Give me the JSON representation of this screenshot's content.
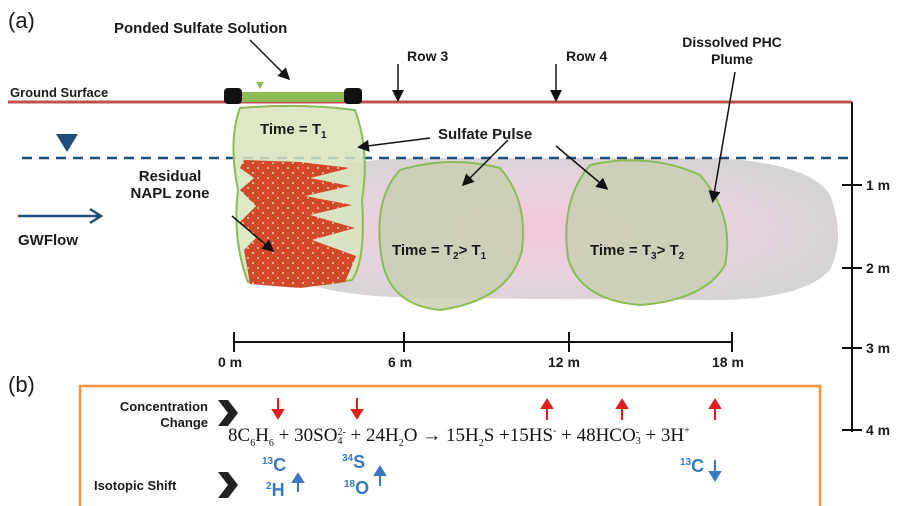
{
  "panel_a_label": "(a)",
  "panel_b_label": "(b)",
  "ponded_sulfate": "Ponded Sulfate Solution",
  "row3": "Row 3",
  "row4": "Row 4",
  "dissolved_plume_1": "Dissolved PHC",
  "dissolved_plume_2": "Plume",
  "ground_surface": "Ground Surface",
  "time1": "Time = T",
  "time1_sub": "1",
  "sulfate_pulse": "Sulfate Pulse",
  "residual_1": "Residual",
  "residual_2": "NAPL zone",
  "gwflow": "GWFlow",
  "time2_a": "Time = T",
  "time2_sub": "2",
  "time2_b": "> T",
  "time2_sub2": "1",
  "time3_a": "Time = T",
  "time3_sub": "3",
  "time3_b": "> T",
  "time3_sub2": "2",
  "hscale_ticks": [
    "0 m",
    "6 m",
    "12 m",
    "18 m"
  ],
  "vscale_ticks": [
    "1 m",
    "2 m",
    "3 m",
    "4 m"
  ],
  "conc_change_1": "Concentration",
  "conc_change_2": "Change",
  "isotopic_shift": "Isotopic Shift",
  "eq": {
    "c6h6_coef": "8C",
    "c6h6_sub1": "6",
    "c6h6_h": "H",
    "c6h6_sub2": "6",
    "plus1": " + 30SO",
    "so4_sub": "4",
    "so4_sup": "2-",
    "plus2": " + 24H",
    "h2o_sub": "2",
    "h2o_o": "O",
    "arrow": " → ",
    "h2s": "15H",
    "h2s_sub": "2",
    "h2s_s": "S",
    "plus3": " +15HS",
    "hs_sup": "-",
    "plus4": " + 48HCO",
    "hco3_sub": "3",
    "hco3_sup": "-",
    "plus5": " + 3H",
    "h_sup": "+"
  },
  "iso": {
    "c13_sup": "13",
    "c13_el": "C",
    "h2_sup": "2",
    "h2_el": "H",
    "s34_sup": "34",
    "s34_el": "S",
    "o18_sup": "18",
    "o18_el": "O",
    "c13b_sup": "13",
    "c13b_el": "C"
  },
  "colors": {
    "ground": "#c0504d",
    "water_table": "#1f4e79",
    "pulse_fill": "#d7e4bd",
    "pulse_stroke": "#8dbb55",
    "napl": "#d2492a",
    "box": "#f79646",
    "red_arrow": "#e02020",
    "blue_arrow": "#3a78c2"
  }
}
